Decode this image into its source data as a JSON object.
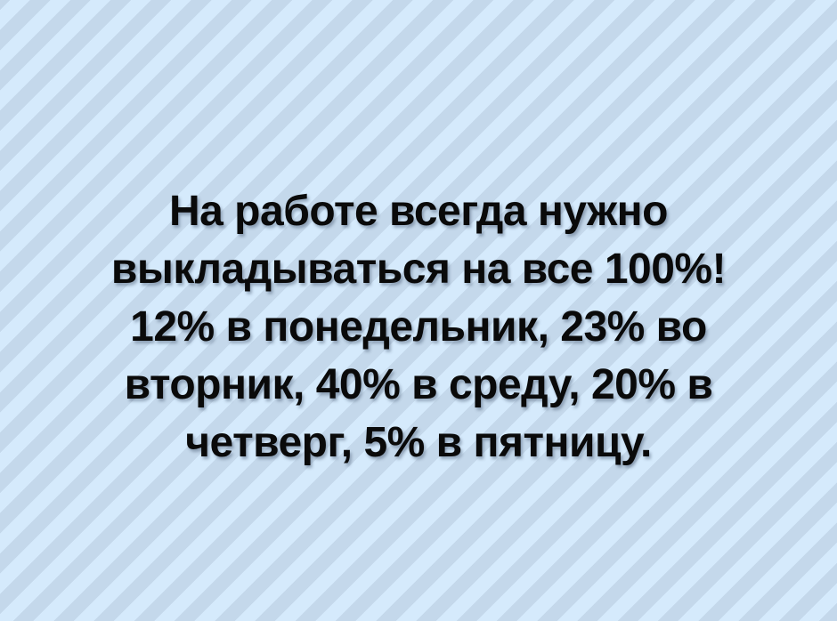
{
  "meme": {
    "full_text": "На работе всегда нужно выкладываться на все 100%! 12% в понедельник, 23% во вторник, 40% в среду, 20% в четверг, 5% в пятницу.",
    "lines": [
      "На работе всегда нужно",
      "выкладываться на все 100%!",
      "12% в понедельник, 23% во",
      "вторник, 40% в среду, 20% в",
      "четверг, 5% в пятницу."
    ],
    "colors": {
      "stripe_light": "#d5eafc",
      "stripe_dark": "#c4d8eb",
      "text": "#0a0a0a"
    }
  }
}
